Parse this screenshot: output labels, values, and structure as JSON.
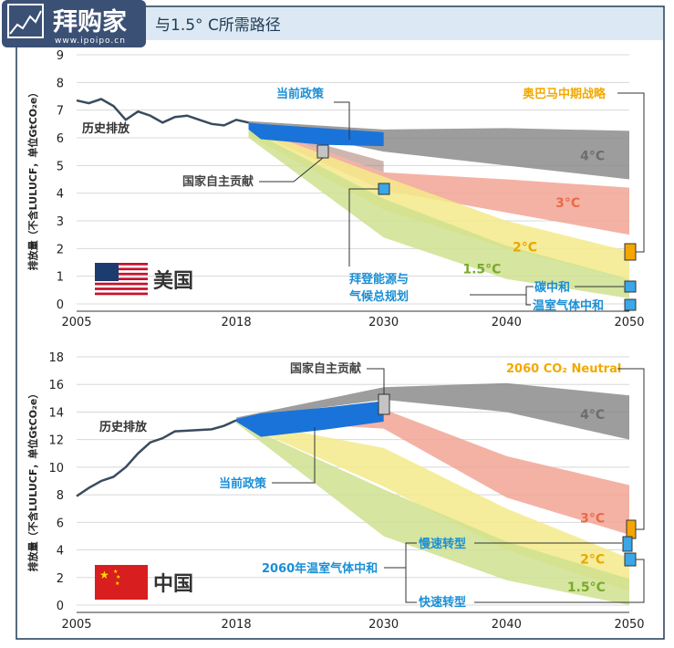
{
  "header": {
    "title_fragment": "与1.5° C所需路径",
    "logo": {
      "name": "拜购家",
      "url": "www.ipoipo.cn"
    }
  },
  "colors": {
    "history": "#3a4b5e",
    "policy": "#1a73d9",
    "gray_band": "#8c8c8c",
    "red_band": "#f2a595",
    "yellow_band": "#f3ea8a",
    "green_band": "#cfe08f",
    "tan_band": "#a57a6e",
    "label_blue": "#1a8fd6",
    "label_orange": "#f2a900",
    "label_4c": "#6d6d6d",
    "label_3c": "#ea6a4a",
    "label_2c": "#e8a800",
    "label_15c": "#7aa92e",
    "marker_blue": "#3aa7e8",
    "marker_orange": "#f5a500",
    "marker_gray": "#c4c4c4"
  },
  "chart_data": [
    {
      "type": "area",
      "country": "美国",
      "ylabel": "排放量（不含LULUCF，单位GtCO₂e）",
      "xlim": [
        2005,
        2050
      ],
      "ylim": [
        0,
        9
      ],
      "xticks": [
        2005,
        2018,
        2030,
        2040,
        2050
      ],
      "yticks": [
        0,
        1,
        2,
        3,
        4,
        5,
        6,
        7,
        8,
        9
      ],
      "history": {
        "label": "历史排放",
        "x": [
          2005,
          2006,
          2007,
          2008,
          2009,
          2010,
          2011,
          2012,
          2013,
          2014,
          2015,
          2016,
          2017,
          2018,
          2019
        ],
        "y": [
          7.35,
          7.25,
          7.4,
          7.15,
          6.65,
          6.95,
          6.8,
          6.55,
          6.75,
          6.8,
          6.65,
          6.5,
          6.45,
          6.65,
          6.55
        ]
      },
      "bands": [
        {
          "name": "4°C",
          "x": [
            2019,
            2030,
            2040,
            2050
          ],
          "upper": [
            6.6,
            6.3,
            6.35,
            6.25
          ],
          "lower": [
            6.5,
            5.5,
            5.0,
            4.5
          ]
        },
        {
          "name": "3°C",
          "x": [
            2019,
            2030,
            2040,
            2050
          ],
          "upper": [
            6.5,
            4.75,
            4.5,
            4.2
          ],
          "lower": [
            6.3,
            4.1,
            3.3,
            2.5
          ]
        },
        {
          "name": "2°C",
          "x": [
            2019,
            2030,
            2040,
            2050
          ],
          "upper": [
            6.4,
            4.6,
            3.0,
            1.9
          ],
          "lower": [
            6.1,
            3.4,
            2.0,
            0.9
          ]
        },
        {
          "name": "1.5°C",
          "x": [
            2019,
            2030,
            2040,
            2050
          ],
          "upper": [
            6.3,
            3.8,
            2.1,
            0.9
          ],
          "lower": [
            6.0,
            2.4,
            0.9,
            0.2
          ]
        }
      ],
      "current_policy": {
        "label": "当前政策",
        "x": [
          2019,
          2020,
          2025,
          2030
        ],
        "upper": [
          6.55,
          6.5,
          6.35,
          6.2
        ],
        "lower": [
          6.3,
          5.95,
          5.75,
          5.7
        ]
      },
      "markers": [
        {
          "label": "国家自主贡献",
          "x": 2025,
          "y": 5.5,
          "color": "gray"
        },
        {
          "label": "拜登能源与\n气候总规划",
          "x": 2030,
          "y": 4.2,
          "color": "blue"
        },
        {
          "label": "奥巴马中期战略",
          "x": 2050,
          "y": 2.0,
          "color": "orange"
        },
        {
          "label": "碳中和",
          "x": 2050,
          "y": 0.65,
          "color": "blue"
        },
        {
          "label": "温室气体中和",
          "x": 2050,
          "y": 0.0,
          "color": "blue"
        }
      ]
    },
    {
      "type": "area",
      "country": "中国",
      "ylabel": "排放量（不含LULUCF，单位GtCO₂e）",
      "xlim": [
        2005,
        2050
      ],
      "ylim": [
        0,
        18
      ],
      "xticks": [
        2005,
        2018,
        2030,
        2040,
        2050
      ],
      "yticks": [
        0,
        2,
        4,
        6,
        8,
        10,
        12,
        14,
        16,
        18
      ],
      "history": {
        "label": "历史排放",
        "x": [
          2005,
          2006,
          2007,
          2008,
          2009,
          2010,
          2011,
          2012,
          2013,
          2014,
          2015,
          2016,
          2017,
          2018
        ],
        "y": [
          7.9,
          8.5,
          9.0,
          9.3,
          10.0,
          11.0,
          11.8,
          12.1,
          12.6,
          12.65,
          12.7,
          12.75,
          13.0,
          13.4
        ]
      },
      "bands": [
        {
          "name": "4°C",
          "x": [
            2018,
            2030,
            2040,
            2050
          ],
          "upper": [
            13.6,
            15.8,
            16.1,
            15.2
          ],
          "lower": [
            13.5,
            14.9,
            14.0,
            12.0
          ]
        },
        {
          "name": "3°C",
          "x": [
            2018,
            2030,
            2040,
            2050
          ],
          "upper": [
            13.5,
            14.2,
            10.8,
            8.7
          ],
          "lower": [
            13.4,
            12.8,
            7.8,
            5.1
          ]
        },
        {
          "name": "2°C",
          "x": [
            2018,
            2030,
            2040,
            2050
          ],
          "upper": [
            13.4,
            11.4,
            7.0,
            3.4
          ],
          "lower": [
            13.3,
            8.6,
            4.0,
            1.0
          ]
        },
        {
          "name": "1.5°C",
          "x": [
            2018,
            2030,
            2040,
            2050
          ],
          "upper": [
            13.3,
            8.4,
            4.6,
            1.9
          ],
          "lower": [
            13.2,
            5.0,
            1.8,
            0.0
          ]
        }
      ],
      "current_policy": {
        "label": "当前政策",
        "x": [
          2018,
          2020,
          2025,
          2030
        ],
        "upper": [
          13.5,
          13.9,
          14.3,
          14.8
        ],
        "lower": [
          13.3,
          12.2,
          12.7,
          13.3
        ]
      },
      "markers": [
        {
          "label": "国家自主贡献",
          "x": 2030,
          "y": 14.4,
          "color": "gray"
        },
        {
          "label": "2060 CO₂ Neutral",
          "x": 2050,
          "y": 5.7,
          "color": "orange"
        },
        {
          "label": "慢速转型",
          "x": 2050,
          "y": 4.5,
          "color": "blue"
        },
        {
          "label": "快速转型",
          "x": 2050,
          "y": 3.4,
          "color": "blue"
        },
        {
          "label": "2060年温室气体中和",
          "x": 2050,
          "y": 3.9,
          "color": "blue"
        }
      ]
    }
  ],
  "flags": [
    {
      "label": "美国",
      "glyph": "US flag"
    },
    {
      "label": "中国",
      "glyph": "China flag"
    }
  ]
}
